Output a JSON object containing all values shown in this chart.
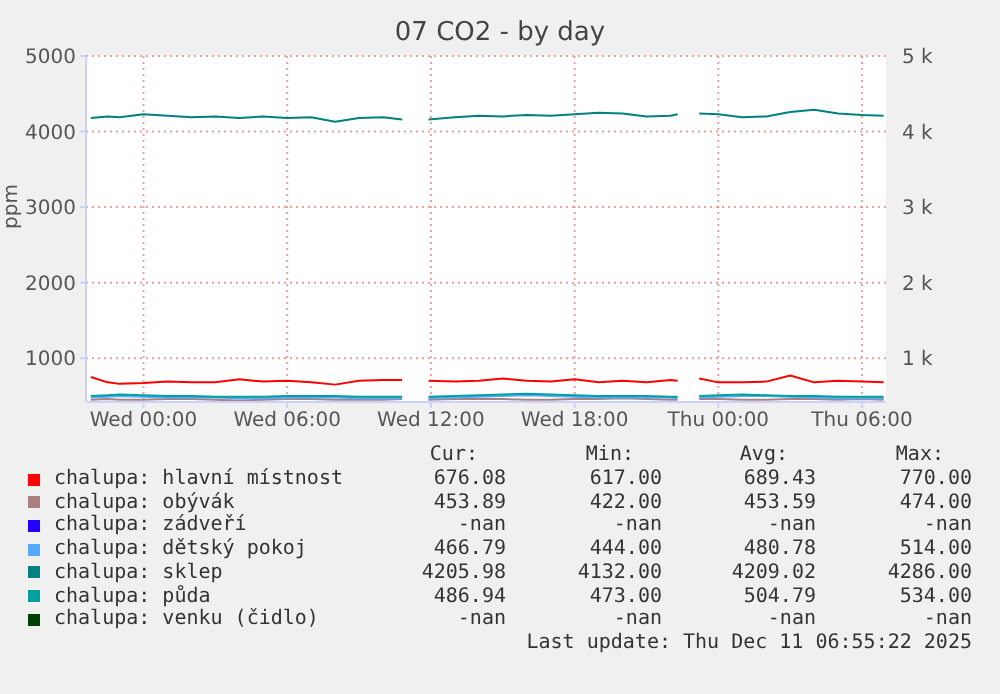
{
  "chart_data": {
    "type": "line",
    "title": "07 CO2 - by day",
    "ylabel": "ppm",
    "x": [
      "2025-12-09T21:48",
      "2025-12-09T22:30",
      "2025-12-09T23:00",
      "2025-12-10T00:00",
      "2025-12-10T01:00",
      "2025-12-10T02:00",
      "2025-12-10T03:00",
      "2025-12-10T04:00",
      "2025-12-10T05:00",
      "2025-12-10T06:00",
      "2025-12-10T07:00",
      "2025-12-10T08:00",
      "2025-12-10T09:00",
      "2025-12-10T10:00",
      "2025-12-10T10:48",
      "2025-12-10T11:24",
      "2025-12-10T11:54",
      "2025-12-10T13:00",
      "2025-12-10T14:00",
      "2025-12-10T15:00",
      "2025-12-10T16:00",
      "2025-12-10T17:00",
      "2025-12-10T18:00",
      "2025-12-10T19:00",
      "2025-12-10T20:00",
      "2025-12-10T21:00",
      "2025-12-10T22:00",
      "2025-12-10T22:18",
      "2025-12-10T22:42",
      "2025-12-10T23:12",
      "2025-12-11T00:00",
      "2025-12-11T01:00",
      "2025-12-11T02:00",
      "2025-12-11T03:00",
      "2025-12-11T04:00",
      "2025-12-11T05:00",
      "2025-12-11T06:00",
      "2025-12-11T06:54"
    ],
    "xlim": [
      "2025-12-09T21:36",
      "2025-12-11T07:00"
    ],
    "xticks": [
      {
        "value": "2025-12-10T00:00",
        "label": "Wed 00:00"
      },
      {
        "value": "2025-12-10T06:00",
        "label": "Wed 06:00"
      },
      {
        "value": "2025-12-10T12:00",
        "label": "Wed 12:00"
      },
      {
        "value": "2025-12-10T18:00",
        "label": "Wed 18:00"
      },
      {
        "value": "2025-12-11T00:00",
        "label": "Thu 00:00"
      },
      {
        "value": "2025-12-11T06:00",
        "label": "Thu 06:00"
      }
    ],
    "ylim": [
      420,
      5000
    ],
    "yticks": [
      1000,
      2000,
      3000,
      4000,
      5000
    ],
    "y2lim": [
      420,
      5000
    ],
    "y2ticks": [
      {
        "value": 1000,
        "label": "1 k"
      },
      {
        "value": 2000,
        "label": "2 k"
      },
      {
        "value": 3000,
        "label": "3 k"
      },
      {
        "value": 4000,
        "label": "4 k"
      },
      {
        "value": 5000,
        "label": "5 k"
      }
    ],
    "grid": true,
    "legend": "bottom",
    "marker": "none",
    "line_style": "solid",
    "series": [
      {
        "name": "chalupa: hlavní místnost",
        "color": "#ff0000",
        "values": [
          750,
          680,
          660,
          670,
          690,
          680,
          680,
          720,
          690,
          700,
          680,
          650,
          700,
          710,
          710,
          null,
          700,
          690,
          700,
          730,
          700,
          690,
          720,
          680,
          700,
          680,
          710,
          700,
          null,
          730,
          680,
          680,
          690,
          770,
          680,
          700,
          690,
          680
        ]
      },
      {
        "name": "chalupa: obývák",
        "color": "#aa8080",
        "values": [
          450,
          460,
          450,
          450,
          460,
          460,
          450,
          440,
          450,
          460,
          460,
          450,
          450,
          450,
          460,
          null,
          450,
          460,
          460,
          460,
          450,
          450,
          460,
          460,
          470,
          460,
          450,
          450,
          null,
          460,
          460,
          450,
          450,
          460,
          460,
          450,
          460,
          450
        ]
      },
      {
        "name": "chalupa: zádveří",
        "color": "#2200ff",
        "values": [
          null,
          null,
          null,
          null,
          null,
          null,
          null,
          null,
          null,
          null,
          null,
          null,
          null,
          null,
          null,
          null,
          null,
          null,
          null,
          null,
          null,
          null,
          null,
          null,
          null,
          null,
          null,
          null,
          null,
          null,
          null,
          null,
          null,
          null,
          null,
          null,
          null,
          null
        ]
      },
      {
        "name": "chalupa: dětský pokoj",
        "color": "#55aaff",
        "values": [
          480,
          490,
          500,
          490,
          480,
          480,
          480,
          470,
          470,
          480,
          480,
          480,
          470,
          470,
          470,
          null,
          470,
          480,
          490,
          500,
          510,
          500,
          490,
          480,
          480,
          480,
          480,
          470,
          null,
          480,
          490,
          500,
          500,
          490,
          480,
          470,
          470,
          470
        ]
      },
      {
        "name": "chalupa: sklep",
        "color": "#008080",
        "values": [
          4180,
          4200,
          4190,
          4230,
          4210,
          4190,
          4200,
          4180,
          4200,
          4180,
          4190,
          4130,
          4180,
          4190,
          4160,
          null,
          4160,
          4190,
          4210,
          4200,
          4220,
          4210,
          4230,
          4250,
          4240,
          4200,
          4210,
          4230,
          null,
          4240,
          4230,
          4190,
          4200,
          4260,
          4290,
          4240,
          4220,
          4210
        ]
      },
      {
        "name": "chalupa: půda",
        "color": "#00a0a0",
        "values": [
          500,
          510,
          520,
          510,
          500,
          500,
          490,
          490,
          490,
          500,
          500,
          500,
          490,
          490,
          490,
          null,
          490,
          500,
          510,
          520,
          530,
          520,
          510,
          500,
          500,
          500,
          490,
          490,
          null,
          500,
          510,
          520,
          510,
          500,
          500,
          490,
          490,
          490
        ]
      },
      {
        "name": "chalupa: venku (čidlo)",
        "color": "#004000",
        "values": [
          null,
          null,
          null,
          null,
          null,
          null,
          null,
          null,
          null,
          null,
          null,
          null,
          null,
          null,
          null,
          null,
          null,
          null,
          null,
          null,
          null,
          null,
          null,
          null,
          null,
          null,
          null,
          null,
          null,
          null,
          null,
          null,
          null,
          null,
          null,
          null,
          null,
          null
        ]
      }
    ],
    "annotations": [
      "Cur:",
      "Min:",
      "Avg:",
      "Max:",
      "676.08",
      "617.00",
      "689.43",
      "770.00",
      "453.89",
      "422.00",
      "453.59",
      "474.00",
      "-nan",
      "-nan",
      "-nan",
      "-nan",
      "466.79",
      "444.00",
      "480.78",
      "514.00",
      "4205.98",
      "4132.00",
      "4209.02",
      "4286.00",
      "486.94",
      "473.00",
      "504.79",
      "534.00",
      "-nan",
      "-nan",
      "-nan",
      "-nan",
      "Last update: Thu Dec 11 06:55:22 2025"
    ]
  }
}
